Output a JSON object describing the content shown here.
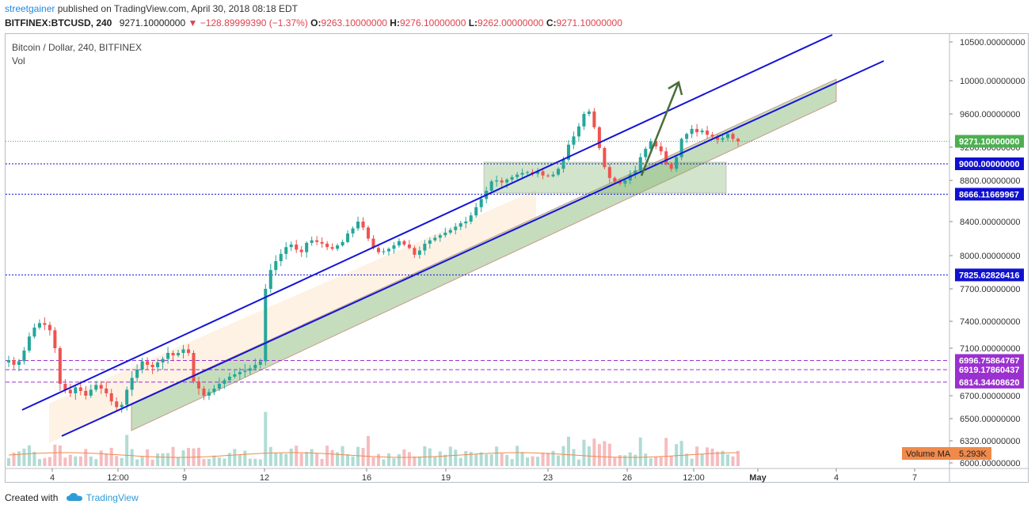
{
  "header": {
    "user": "streetgainer",
    "published_text": " published on TradingView.com, April 30, 2018 08:18 EDT",
    "symbol": "BITFINEX:BTCUSD, 240",
    "last": "9271.10000000",
    "change": "−128.89999390 (−1.37%)",
    "o_label": "O:",
    "o": "9263.10000000",
    "h_label": "H:",
    "h": "9276.10000000",
    "l_label": "L:",
    "l": "9262.00000000",
    "c_label": "C:",
    "c": "9271.10000000"
  },
  "legend": {
    "title": "Bitcoin / Dollar, 240, BITFINEX",
    "vol": "Vol"
  },
  "footer": {
    "created_with": "Created with",
    "brand": "TradingView"
  },
  "colors": {
    "up": "#26a69a",
    "down": "#ef5350",
    "channel": "#1414d8",
    "arrow": "#4a6e3a",
    "price_label": "#4caf50",
    "level_blue": "#1010d0",
    "level_purple": "#9b30d0",
    "ma_label": "#f08a4b"
  },
  "chart_data": {
    "type": "candlestick",
    "title": "Bitcoin / Dollar, 240, BITFINEX",
    "y_axis_ticks": [
      "10500.00000000",
      "10000.00000000",
      "9600.00000000",
      "9200.00000000",
      "8800.00000000",
      "8400.00000000",
      "8000.00000000",
      "7700.00000000",
      "7400.00000000",
      "7100.00000000",
      "6700.00000000",
      "6500.00000000",
      "6320.00000000",
      "6000.00000000"
    ],
    "x_axis_ticks": [
      "4",
      "12:00",
      "9",
      "12",
      "16",
      "19",
      "23",
      "26",
      "12:00",
      "May",
      "4",
      "7"
    ],
    "last_price": 9271.1,
    "last_price_label": "9271.10000000",
    "levels": [
      {
        "value": 9000.0,
        "label": "9000.00000000",
        "color": "blue"
      },
      {
        "value": 8666.11669967,
        "label": "8666.11669967",
        "color": "blue"
      },
      {
        "value": 7825.62826416,
        "label": "7825.62826416",
        "color": "blue"
      },
      {
        "value": 6996.75864767,
        "label": "6996.75864767",
        "color": "purple"
      },
      {
        "value": 6919.17860437,
        "label": "6919.17860437",
        "color": "purple"
      },
      {
        "value": 6814.3440862,
        "label": "6814.34408620",
        "color": "purple"
      }
    ],
    "volume_ma_label": "Volume MA",
    "volume_ma_value": "5.293K",
    "close_series": [
      7000,
      6960,
      6990,
      7080,
      7230,
      7330,
      7380,
      7360,
      7300,
      7100,
      6800,
      6750,
      6720,
      6770,
      6740,
      6700,
      6750,
      6790,
      6760,
      6720,
      6650,
      6600,
      6620,
      6750,
      6850,
      6920,
      6990,
      6960,
      6940,
      6980,
      7010,
      7060,
      7040,
      7060,
      7090,
      7060,
      6820,
      6760,
      6700,
      6730,
      6760,
      6800,
      6830,
      6860,
      6880,
      6900,
      6910,
      6930,
      6960,
      6990,
      7700,
      7870,
      7950,
      8020,
      8100,
      8130,
      8070,
      8040,
      8150,
      8180,
      8160,
      8140,
      8100,
      8080,
      8120,
      8160,
      8260,
      8320,
      8400,
      8330,
      8200,
      8090,
      8040,
      8050,
      8080,
      8120,
      8170,
      8130,
      8090,
      8010,
      8060,
      8140,
      8180,
      8210,
      8240,
      8270,
      8300,
      8340,
      8380,
      8400,
      8460,
      8540,
      8620,
      8700,
      8790,
      8800,
      8780,
      8810,
      8840,
      8870,
      8890,
      8900,
      8880,
      8910,
      8860,
      8850,
      8870,
      8940,
      9050,
      9230,
      9330,
      9450,
      9600,
      9630,
      9440,
      9190,
      8960,
      8830,
      8790,
      8770,
      8800,
      8870,
      8920,
      9080,
      9180,
      9270,
      9210,
      9150,
      9000,
      8940,
      9080,
      9300,
      9360,
      9420,
      9380,
      9400,
      9350,
      9330,
      9290,
      9310,
      9360,
      9300,
      9271
    ]
  }
}
